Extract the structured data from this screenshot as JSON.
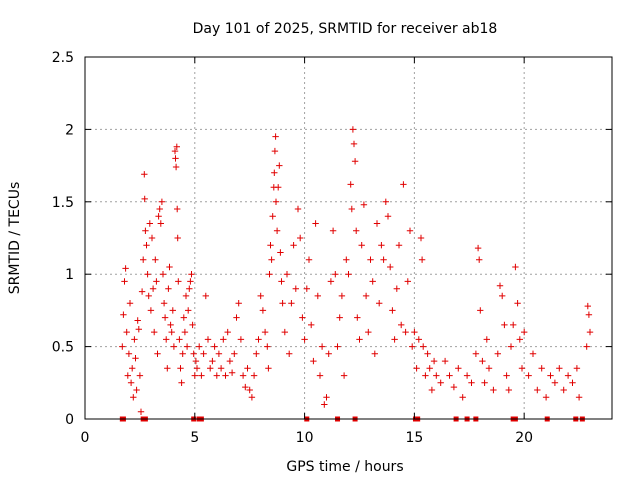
{
  "chart_data": {
    "type": "scatter",
    "title": "Day 101 of 2025, SRMTID for receiver ab18",
    "xlabel": "GPS time / hours",
    "ylabel": "SRMTID / TECUs",
    "xlim": [
      0,
      24
    ],
    "ylim": [
      0,
      2.5
    ],
    "xticks": [
      0,
      5,
      10,
      15,
      20
    ],
    "yticks": [
      0,
      0.5,
      1,
      1.5,
      2,
      2.5
    ],
    "xtick_labels": [
      "0",
      "5",
      "10",
      "15",
      "20"
    ],
    "ytick_labels": [
      "0",
      "0.5",
      "1",
      "1.5",
      "2",
      "2.5"
    ],
    "grid": true,
    "marker": "+",
    "marker_color": "#e00000",
    "zero_marker": "square",
    "zero_markers_x": [
      1.7,
      1.75,
      2.65,
      2.75,
      4.95,
      5.2,
      5.3,
      10.1,
      11.5,
      12.3,
      15.05,
      15.15,
      16.9,
      17.4,
      17.8,
      19.5,
      19.6,
      21.05,
      22.35,
      22.65
    ],
    "series": [
      {
        "name": "SRMTID",
        "points": [
          [
            1.7,
            0.5
          ],
          [
            1.75,
            0.72
          ],
          [
            1.8,
            0.95
          ],
          [
            1.85,
            1.04
          ],
          [
            1.9,
            0.6
          ],
          [
            1.95,
            0.3
          ],
          [
            2.0,
            0.45
          ],
          [
            2.05,
            0.8
          ],
          [
            2.1,
            0.25
          ],
          [
            2.15,
            0.35
          ],
          [
            2.2,
            0.15
          ],
          [
            2.25,
            0.55
          ],
          [
            2.3,
            0.42
          ],
          [
            2.35,
            0.2
          ],
          [
            2.4,
            0.68
          ],
          [
            2.45,
            0.62
          ],
          [
            2.5,
            0.3
          ],
          [
            2.55,
            0.05
          ],
          [
            2.6,
            0.88
          ],
          [
            2.65,
            1.1
          ],
          [
            2.7,
            1.69
          ],
          [
            2.72,
            1.52
          ],
          [
            2.75,
            1.3
          ],
          [
            2.8,
            1.2
          ],
          [
            2.85,
            1.0
          ],
          [
            2.9,
            0.85
          ],
          [
            2.95,
            1.35
          ],
          [
            3.0,
            0.75
          ],
          [
            3.05,
            1.25
          ],
          [
            3.1,
            0.9
          ],
          [
            3.15,
            0.6
          ],
          [
            3.2,
            1.1
          ],
          [
            3.25,
            0.95
          ],
          [
            3.3,
            0.45
          ],
          [
            3.35,
            1.4
          ],
          [
            3.4,
            1.45
          ],
          [
            3.45,
            1.35
          ],
          [
            3.5,
            1.5
          ],
          [
            3.55,
            1.0
          ],
          [
            3.6,
            0.8
          ],
          [
            3.65,
            0.7
          ],
          [
            3.7,
            0.55
          ],
          [
            3.75,
            0.35
          ],
          [
            3.8,
            0.9
          ],
          [
            3.85,
            1.05
          ],
          [
            3.9,
            0.65
          ],
          [
            3.95,
            0.6
          ],
          [
            4.0,
            0.75
          ],
          [
            4.05,
            0.5
          ],
          [
            4.1,
            1.85
          ],
          [
            4.12,
            1.8
          ],
          [
            4.15,
            1.74
          ],
          [
            4.18,
            1.88
          ],
          [
            4.2,
            1.45
          ],
          [
            4.22,
            1.25
          ],
          [
            4.25,
            0.95
          ],
          [
            4.3,
            0.55
          ],
          [
            4.35,
            0.35
          ],
          [
            4.4,
            0.25
          ],
          [
            4.45,
            0.45
          ],
          [
            4.5,
            0.7
          ],
          [
            4.55,
            0.6
          ],
          [
            4.6,
            0.85
          ],
          [
            4.65,
            0.5
          ],
          [
            4.7,
            0.75
          ],
          [
            4.75,
            0.9
          ],
          [
            4.8,
            0.95
          ],
          [
            4.85,
            1.0
          ],
          [
            4.9,
            0.65
          ],
          [
            4.95,
            0.45
          ],
          [
            5.0,
            0.3
          ],
          [
            5.05,
            0.4
          ],
          [
            5.1,
            0.35
          ],
          [
            5.2,
            0.5
          ],
          [
            5.3,
            0.3
          ],
          [
            5.4,
            0.45
          ],
          [
            5.5,
            0.85
          ],
          [
            5.6,
            0.55
          ],
          [
            5.7,
            0.35
          ],
          [
            5.8,
            0.4
          ],
          [
            5.9,
            0.5
          ],
          [
            6.0,
            0.3
          ],
          [
            6.1,
            0.45
          ],
          [
            6.2,
            0.35
          ],
          [
            6.3,
            0.55
          ],
          [
            6.4,
            0.3
          ],
          [
            6.5,
            0.6
          ],
          [
            6.6,
            0.4
          ],
          [
            6.7,
            0.32
          ],
          [
            6.8,
            0.45
          ],
          [
            6.9,
            0.7
          ],
          [
            7.0,
            0.8
          ],
          [
            7.1,
            0.55
          ],
          [
            7.2,
            0.3
          ],
          [
            7.3,
            0.22
          ],
          [
            7.4,
            0.35
          ],
          [
            7.5,
            0.2
          ],
          [
            7.6,
            0.15
          ],
          [
            7.7,
            0.3
          ],
          [
            7.8,
            0.45
          ],
          [
            7.9,
            0.55
          ],
          [
            8.0,
            0.85
          ],
          [
            8.1,
            0.75
          ],
          [
            8.2,
            0.6
          ],
          [
            8.3,
            0.5
          ],
          [
            8.35,
            0.35
          ],
          [
            8.4,
            1.0
          ],
          [
            8.45,
            1.2
          ],
          [
            8.5,
            1.1
          ],
          [
            8.55,
            1.4
          ],
          [
            8.6,
            1.6
          ],
          [
            8.62,
            1.7
          ],
          [
            8.65,
            1.85
          ],
          [
            8.68,
            1.95
          ],
          [
            8.7,
            1.5
          ],
          [
            8.75,
            1.3
          ],
          [
            8.8,
            1.6
          ],
          [
            8.85,
            1.75
          ],
          [
            8.9,
            1.15
          ],
          [
            8.95,
            0.95
          ],
          [
            9.0,
            0.8
          ],
          [
            9.1,
            0.6
          ],
          [
            9.2,
            1.0
          ],
          [
            9.3,
            0.45
          ],
          [
            9.4,
            0.8
          ],
          [
            9.5,
            1.2
          ],
          [
            9.6,
            0.9
          ],
          [
            9.7,
            1.45
          ],
          [
            9.8,
            1.25
          ],
          [
            9.9,
            0.7
          ],
          [
            10.0,
            0.55
          ],
          [
            10.1,
            0.9
          ],
          [
            10.2,
            1.1
          ],
          [
            10.3,
            0.65
          ],
          [
            10.4,
            0.4
          ],
          [
            10.5,
            1.35
          ],
          [
            10.6,
            0.85
          ],
          [
            10.7,
            0.3
          ],
          [
            10.8,
            0.5
          ],
          [
            10.9,
            0.1
          ],
          [
            11.0,
            0.15
          ],
          [
            11.1,
            0.45
          ],
          [
            11.2,
            0.95
          ],
          [
            11.3,
            1.3
          ],
          [
            11.4,
            1.0
          ],
          [
            11.5,
            0.5
          ],
          [
            11.6,
            0.7
          ],
          [
            11.7,
            0.85
          ],
          [
            11.8,
            0.3
          ],
          [
            11.9,
            1.1
          ],
          [
            12.0,
            1.0
          ],
          [
            12.1,
            1.62
          ],
          [
            12.15,
            1.45
          ],
          [
            12.2,
            2.0
          ],
          [
            12.25,
            1.9
          ],
          [
            12.3,
            1.78
          ],
          [
            12.35,
            1.3
          ],
          [
            12.4,
            0.7
          ],
          [
            12.5,
            0.55
          ],
          [
            12.6,
            1.2
          ],
          [
            12.7,
            1.48
          ],
          [
            12.8,
            0.85
          ],
          [
            12.9,
            0.6
          ],
          [
            13.0,
            1.1
          ],
          [
            13.1,
            0.95
          ],
          [
            13.2,
            0.45
          ],
          [
            13.3,
            1.35
          ],
          [
            13.4,
            0.8
          ],
          [
            13.5,
            1.2
          ],
          [
            13.6,
            1.1
          ],
          [
            13.7,
            1.5
          ],
          [
            13.8,
            1.4
          ],
          [
            13.9,
            1.05
          ],
          [
            14.0,
            0.75
          ],
          [
            14.1,
            0.55
          ],
          [
            14.2,
            0.9
          ],
          [
            14.3,
            1.2
          ],
          [
            14.4,
            0.65
          ],
          [
            14.5,
            1.62
          ],
          [
            14.6,
            0.6
          ],
          [
            14.7,
            0.95
          ],
          [
            14.8,
            1.3
          ],
          [
            14.9,
            0.5
          ],
          [
            15.0,
            0.6
          ],
          [
            15.1,
            0.35
          ],
          [
            15.2,
            0.55
          ],
          [
            15.3,
            1.25
          ],
          [
            15.35,
            1.1
          ],
          [
            15.4,
            0.5
          ],
          [
            15.5,
            0.3
          ],
          [
            15.6,
            0.45
          ],
          [
            15.7,
            0.35
          ],
          [
            15.8,
            0.2
          ],
          [
            15.9,
            0.4
          ],
          [
            16.0,
            0.3
          ],
          [
            16.2,
            0.25
          ],
          [
            16.4,
            0.4
          ],
          [
            16.6,
            0.3
          ],
          [
            16.8,
            0.22
          ],
          [
            17.0,
            0.35
          ],
          [
            17.2,
            0.15
          ],
          [
            17.4,
            0.3
          ],
          [
            17.6,
            0.25
          ],
          [
            17.8,
            0.45
          ],
          [
            17.9,
            1.18
          ],
          [
            17.95,
            1.1
          ],
          [
            18.0,
            0.75
          ],
          [
            18.1,
            0.4
          ],
          [
            18.2,
            0.25
          ],
          [
            18.3,
            0.55
          ],
          [
            18.4,
            0.35
          ],
          [
            18.6,
            0.2
          ],
          [
            18.8,
            0.45
          ],
          [
            18.9,
            0.92
          ],
          [
            19.0,
            0.85
          ],
          [
            19.1,
            0.65
          ],
          [
            19.2,
            0.3
          ],
          [
            19.3,
            0.2
          ],
          [
            19.4,
            0.5
          ],
          [
            19.5,
            0.65
          ],
          [
            19.6,
            1.05
          ],
          [
            19.7,
            0.8
          ],
          [
            19.8,
            0.55
          ],
          [
            19.9,
            0.35
          ],
          [
            20.0,
            0.6
          ],
          [
            20.2,
            0.3
          ],
          [
            20.4,
            0.45
          ],
          [
            20.6,
            0.2
          ],
          [
            20.8,
            0.35
          ],
          [
            21.0,
            0.15
          ],
          [
            21.2,
            0.3
          ],
          [
            21.4,
            0.25
          ],
          [
            21.6,
            0.35
          ],
          [
            21.8,
            0.2
          ],
          [
            22.0,
            0.3
          ],
          [
            22.2,
            0.25
          ],
          [
            22.4,
            0.35
          ],
          [
            22.5,
            0.15
          ],
          [
            22.85,
            0.5
          ],
          [
            22.9,
            0.78
          ],
          [
            22.95,
            0.72
          ],
          [
            23.0,
            0.6
          ]
        ]
      }
    ]
  }
}
